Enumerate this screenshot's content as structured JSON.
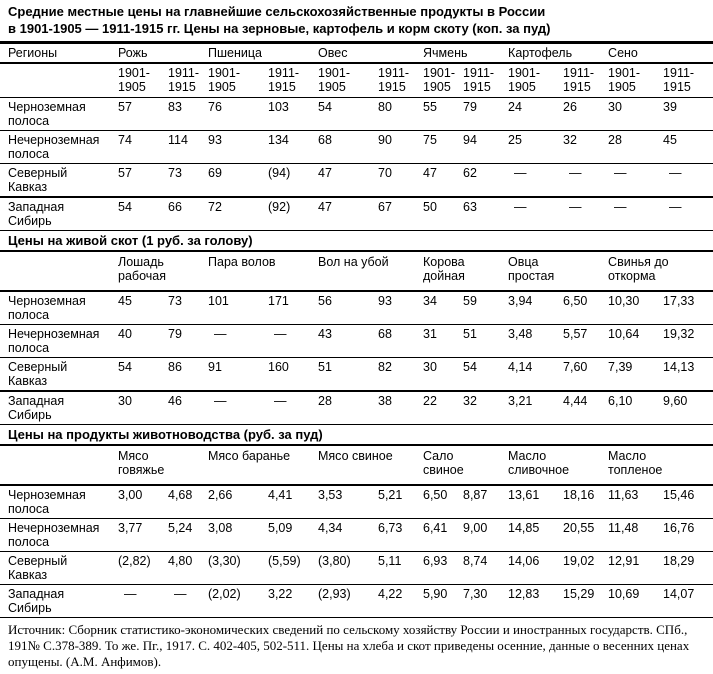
{
  "title": {
    "line1": "Средние местные цены на главнейшие сельскохозяйственные продукты в России",
    "line2": "в 1901-1905 — 1911-1915 гг. Цены на зерновые, картофель и корм скоту (коп. за пуд)"
  },
  "grain_table": {
    "region_header": "Регионы",
    "groups": [
      "Рожь",
      "Пшеница",
      "Овес",
      "Ячмень",
      "Картофель",
      "Сено"
    ],
    "year_cols": [
      "1901-\n1905",
      "1911-\n1915",
      "1901-\n1905",
      "1911-\n1915",
      "1901-\n1905",
      "1911-\n1915",
      "1901-\n1905",
      "1911-\n1915",
      "1901-\n1905",
      "1911-\n1915",
      "1901-\n1905",
      "1911-\n1915"
    ],
    "rows": [
      {
        "region": "Черноземная полоса",
        "values": [
          "57",
          "83",
          "76",
          "103",
          "54",
          "80",
          "55",
          "79",
          "24",
          "26",
          "30",
          "39"
        ]
      },
      {
        "region": "Нечерноземная полоса",
        "values": [
          "74",
          "114",
          "93",
          "134",
          "68",
          "90",
          "75",
          "94",
          "25",
          "32",
          "28",
          "45"
        ]
      },
      {
        "region": "Северный Кавказ",
        "values": [
          "57",
          "73",
          "69",
          "(94)",
          "47",
          "70",
          "47",
          "62",
          "—",
          "—",
          "—",
          "—"
        ]
      },
      {
        "region": "Западная Сибирь",
        "values": [
          "54",
          "66",
          "72",
          "(92)",
          "47",
          "67",
          "50",
          "63",
          "—",
          "—",
          "—",
          "—"
        ]
      }
    ]
  },
  "livestock_table": {
    "section_header": "Цены на живой скот (1 руб. за голову)",
    "groups": [
      "Лошадь\nрабочая",
      "Пара волов",
      "Вол на убой",
      "Корова\nдойная",
      "Овца\nпростая",
      "Свинья до\nоткорма"
    ],
    "rows": [
      {
        "region": "Черноземная полоса",
        "values": [
          "45",
          "73",
          "101",
          "171",
          "56",
          "93",
          "34",
          "59",
          "3,94",
          "6,50",
          "10,30",
          "17,33"
        ]
      },
      {
        "region": "Нечерноземная полоса",
        "values": [
          "40",
          "79",
          "—",
          "—",
          "43",
          "68",
          "31",
          "51",
          "3,48",
          "5,57",
          "10,64",
          "19,32"
        ]
      },
      {
        "region": "Северный Кавказ",
        "values": [
          "54",
          "86",
          "91",
          "160",
          "51",
          "82",
          "30",
          "54",
          "4,14",
          "7,60",
          "7,39",
          "14,13"
        ]
      },
      {
        "region": "Западная Сибирь",
        "values": [
          "30",
          "46",
          "—",
          "—",
          "28",
          "38",
          "22",
          "32",
          "3,21",
          "4,44",
          "6,10",
          "9,60"
        ]
      }
    ]
  },
  "products_table": {
    "section_header": "Цены на продукты животноводства (руб. за пуд)",
    "groups": [
      "Мясо\nговяжье",
      "Мясо баранье",
      "Мясо свиное",
      "Сало\nсвиное",
      "Масло\nсливочное",
      "Масло\nтопленое"
    ],
    "rows": [
      {
        "region": "Черноземная полоса",
        "values": [
          "3,00",
          "4,68",
          "2,66",
          "4,41",
          "3,53",
          "5,21",
          "6,50",
          "8,87",
          "13,61",
          "18,16",
          "11,63",
          "15,46"
        ]
      },
      {
        "region": "Нечерноземная полоса",
        "values": [
          "3,77",
          "5,24",
          "3,08",
          "5,09",
          "4,34",
          "6,73",
          "6,41",
          "9,00",
          "14,85",
          "20,55",
          "11,48",
          "16,76"
        ]
      },
      {
        "region": "Северный Кавказ",
        "values": [
          "(2,82)",
          "4,80",
          "(3,30)",
          "(5,59)",
          "(3,80)",
          "5,11",
          "6,93",
          "8,74",
          "14,06",
          "19,02",
          "12,91",
          "18,29"
        ]
      },
      {
        "region": "Западная Сибирь",
        "values": [
          "—",
          "—",
          "(2,02)",
          "3,22",
          "(2,93)",
          "4,22",
          "5,90",
          "7,30",
          "12,83",
          "15,29",
          "10,69",
          "14,07"
        ]
      }
    ]
  },
  "footer": "Источник: Сборник статистико-экономических сведений по сельскому хозяйству России и иностранных государств. СПб., 191№ С.378-389. То же. Пг., 1917. С. 402-405, 502-511. Цены на хлеба и скот приведены осенние, данные о весенних ценах опущены. (А.М. Анфимов)."
}
